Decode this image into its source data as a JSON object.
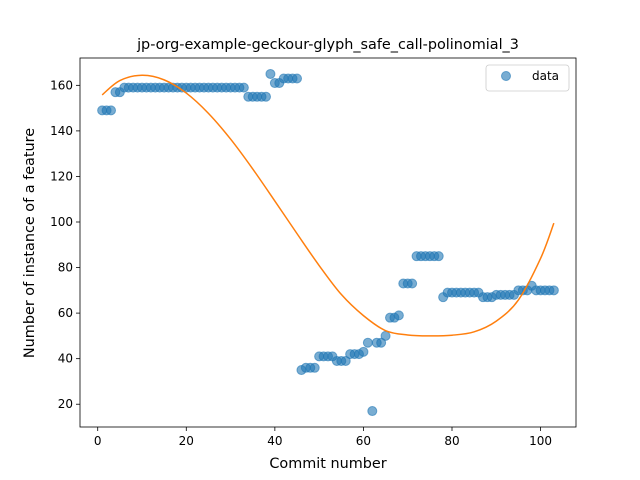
{
  "chart_data": {
    "type": "scatter",
    "title": "jp-org-example-geckour-glyph_safe_call-polinomial_3",
    "xlabel": "Commit number",
    "ylabel": "Number of instance of a feature",
    "xlim": [
      -4,
      108
    ],
    "ylim": [
      10,
      172
    ],
    "xticks": [
      0,
      20,
      40,
      60,
      80,
      100
    ],
    "yticks": [
      20,
      40,
      60,
      80,
      100,
      120,
      140,
      160
    ],
    "legend": {
      "position": "top-right",
      "entries": [
        "data"
      ]
    },
    "grid": false,
    "colors": {
      "points": "#1f77b4",
      "fit": "#ff7f0e"
    },
    "series": [
      {
        "name": "data",
        "kind": "scatter",
        "x": [
          1,
          2,
          3,
          4,
          5,
          6,
          7,
          8,
          9,
          10,
          11,
          12,
          13,
          14,
          15,
          16,
          17,
          18,
          19,
          20,
          21,
          22,
          23,
          24,
          25,
          26,
          27,
          28,
          29,
          30,
          31,
          32,
          33,
          34,
          35,
          36,
          37,
          38,
          39,
          40,
          41,
          42,
          43,
          44,
          45,
          46,
          47,
          48,
          49,
          50,
          51,
          52,
          53,
          54,
          55,
          56,
          57,
          58,
          59,
          60,
          61,
          62,
          63,
          64,
          65,
          66,
          67,
          68,
          69,
          70,
          71,
          72,
          73,
          74,
          75,
          76,
          77,
          78,
          79,
          80,
          81,
          82,
          83,
          84,
          85,
          86,
          87,
          88,
          89,
          90,
          91,
          92,
          93,
          94,
          95,
          96,
          97,
          98,
          99,
          100,
          101,
          102,
          103
        ],
        "y": [
          149,
          149,
          149,
          157,
          157,
          159,
          159,
          159,
          159,
          159,
          159,
          159,
          159,
          159,
          159,
          159,
          159,
          159,
          159,
          159,
          159,
          159,
          159,
          159,
          159,
          159,
          159,
          159,
          159,
          159,
          159,
          159,
          159,
          155,
          155,
          155,
          155,
          155,
          165,
          161,
          161,
          163,
          163,
          163,
          163,
          35,
          36,
          36,
          36,
          41,
          41,
          41,
          41,
          39,
          39,
          39,
          42,
          42,
          42,
          43,
          47,
          17,
          47,
          47,
          50,
          58,
          58,
          59,
          73,
          73,
          73,
          85,
          85,
          85,
          85,
          85,
          85,
          67,
          69,
          69,
          69,
          69,
          69,
          69,
          69,
          69,
          67,
          67,
          67,
          68,
          68,
          68,
          68,
          68,
          70,
          70,
          70,
          72,
          70,
          70,
          70,
          70,
          70
        ]
      },
      {
        "name": "",
        "kind": "line",
        "fit_degree": 3,
        "x": [
          1,
          5,
          10,
          15,
          20,
          25,
          30,
          35,
          40,
          45,
          50,
          55,
          60,
          65,
          70,
          75,
          80,
          85,
          90,
          95,
          100,
          103
        ],
        "y": [
          155.8,
          162.1,
          164.4,
          162.4,
          156.6,
          147.7,
          136.4,
          123.3,
          109.2,
          94.9,
          80.9,
          68.2,
          58.9,
          52.3,
          50.4,
          50.0,
          50.3,
          51.8,
          56.5,
          65.8,
          84.0,
          99.5
        ]
      }
    ]
  }
}
